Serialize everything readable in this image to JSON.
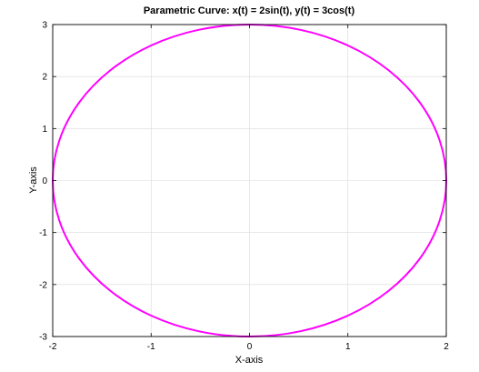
{
  "chart_data": {
    "type": "line",
    "title": "Parametric Curve: x(t) = 2sin(t), y(t) = 3cos(t)",
    "xlabel": "X-axis",
    "ylabel": "Y-axis",
    "xlim": [
      -2,
      2
    ],
    "ylim": [
      -3,
      3
    ],
    "xticks": [
      -2,
      -1,
      0,
      1,
      2
    ],
    "yticks": [
      -3,
      -2,
      -1,
      0,
      1,
      2,
      3
    ],
    "xtick_labels": [
      "-2",
      "-1",
      "0",
      "1",
      "2"
    ],
    "ytick_labels": [
      "-3",
      "-2",
      "-1",
      "0",
      "1",
      "2",
      "3"
    ],
    "grid": true,
    "legend": "none",
    "series": [
      {
        "x": [
          0,
          0.518,
          1.0,
          1.414,
          1.732,
          1.932,
          2.0,
          1.932,
          1.732,
          1.414,
          1.0,
          0.518,
          0,
          -0.518,
          -1.0,
          -1.414,
          -1.732,
          -1.932,
          -2.0,
          -1.932,
          -1.732,
          -1.414,
          -1.0,
          -0.518,
          0
        ],
        "y": [
          3.0,
          2.898,
          2.598,
          2.121,
          1.5,
          0.776,
          0,
          -0.776,
          -1.5,
          -2.121,
          -2.598,
          -2.898,
          -3.0,
          -2.898,
          -2.598,
          -2.121,
          -1.5,
          -0.776,
          0,
          0.776,
          1.5,
          2.121,
          2.598,
          2.898,
          3.0
        ],
        "color": "#ff00ff"
      }
    ]
  }
}
